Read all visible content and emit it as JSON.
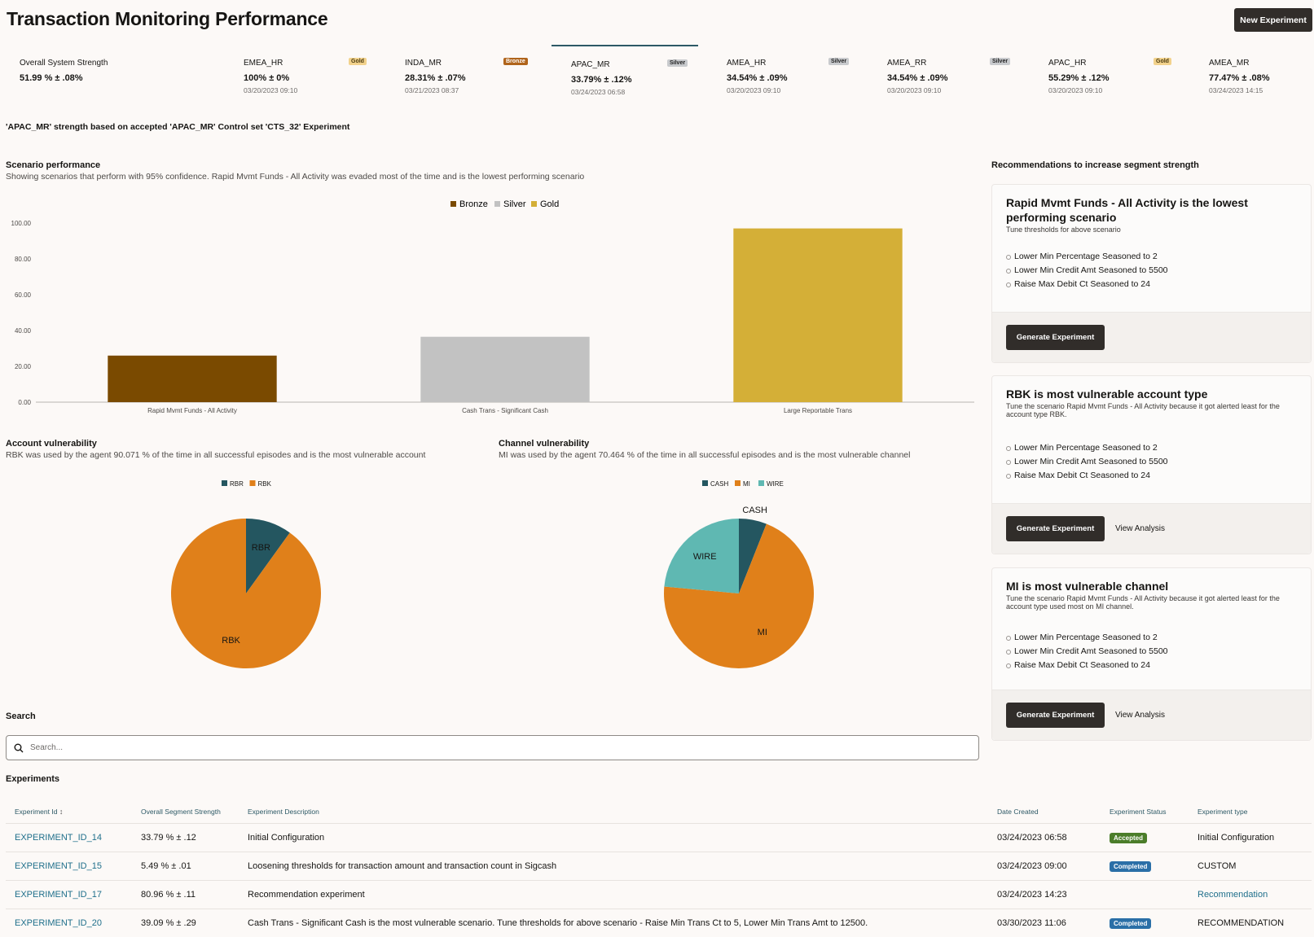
{
  "page": {
    "title": "Transaction Monitoring Performance",
    "new_experiment": "New Experiment"
  },
  "tabs": [
    {
      "name": "Overall System Strength",
      "value": "51.99 % ± .08%",
      "date": "",
      "badge": ""
    },
    {
      "name": "EMEA_HR",
      "value": "100% ± 0%",
      "date": "03/20/2023 09:10",
      "badge": "Gold"
    },
    {
      "name": "INDA_MR",
      "value": "28.31% ± .07%",
      "date": "03/21/2023 08:37",
      "badge": "Bronze"
    },
    {
      "name": "APAC_MR",
      "value": "33.79% ± .12%",
      "date": "03/24/2023 06:58",
      "badge": "Silver"
    },
    {
      "name": "AMEA_HR",
      "value": "34.54% ± .09%",
      "date": "03/20/2023 09:10",
      "badge": "Silver"
    },
    {
      "name": "AMEA_RR",
      "value": "34.54% ± .09%",
      "date": "03/20/2023 09:10",
      "badge": "Silver"
    },
    {
      "name": "APAC_HR",
      "value": "55.29% ± .12%",
      "date": "03/20/2023 09:10",
      "badge": "Gold"
    },
    {
      "name": "AMEA_MR",
      "value": "77.47% ± .08%",
      "date": "03/24/2023 14:15",
      "badge": ""
    }
  ],
  "selected_tab": "APAC_MR",
  "context_line": "'APAC_MR' strength based on accepted 'APAC_MR' Control set 'CTS_32' Experiment",
  "scenario": {
    "title": "Scenario performance",
    "subtitle": "Showing scenarios that perform with 95% confidence. Rapid Mvmt Funds - All Activity was evaded most of the time and is the lowest performing scenario"
  },
  "chart_data": [
    {
      "type": "bar",
      "categories": [
        "Rapid Mvmt Funds - All Activity",
        "Cash Trans - Significant Cash",
        "Large Reportable Trans"
      ],
      "series": [
        {
          "name": "Bronze",
          "values": [
            26,
            null,
            null
          ],
          "color": "#7a4a00"
        },
        {
          "name": "Silver",
          "values": [
            null,
            36.5,
            null
          ],
          "color": "#c2c2c2"
        },
        {
          "name": "Gold",
          "values": [
            null,
            null,
            97
          ],
          "color": "#d4af37"
        }
      ],
      "yticks": [
        "0.00",
        "20.00",
        "40.00",
        "60.00",
        "80.00",
        "100.00"
      ],
      "ylim": [
        0,
        100
      ],
      "legend": "top-center"
    },
    {
      "type": "pie",
      "title": "Account vulnerability",
      "legend": [
        {
          "name": "RBR",
          "color": "#245660"
        },
        {
          "name": "RBK",
          "color": "#e0801a"
        }
      ],
      "slices": [
        {
          "label": "RBR",
          "value": 9.929,
          "color": "#245660"
        },
        {
          "label": "RBK",
          "value": 90.071,
          "color": "#e0801a"
        }
      ]
    },
    {
      "type": "pie",
      "title": "Channel vulnerability",
      "legend": [
        {
          "name": "CASH",
          "color": "#245660"
        },
        {
          "name": "MI",
          "color": "#e0801a"
        },
        {
          "name": "WIRE",
          "color": "#5fb8b2"
        }
      ],
      "slices": [
        {
          "label": "CASH",
          "value": 6,
          "color": "#245660"
        },
        {
          "label": "MI",
          "value": 70.464,
          "color": "#e0801a"
        },
        {
          "label": "WIRE",
          "value": 23.536,
          "color": "#5fb8b2"
        }
      ]
    }
  ],
  "account": {
    "title": "Account vulnerability",
    "subtitle": "RBK was used by the agent 90.071 % of the time in all successful episodes and is the most vulnerable account"
  },
  "channel": {
    "title": "Channel vulnerability",
    "subtitle": "MI was used by the agent 70.464 % of the time in all successful episodes and is the most vulnerable channel"
  },
  "recommendations": {
    "title": "Recommendations to increase segment strength",
    "cards": [
      {
        "title": "Rapid Mvmt Funds - All Activity is the lowest performing scenario",
        "subtitle": "Tune thresholds for above scenario",
        "items": [
          "Lower Min Percentage Seasoned to 2",
          "Lower Min Credit Amt Seasoned to 5500",
          "Raise Max Debit Ct Seasoned to 24"
        ],
        "button": "Generate Experiment",
        "link": ""
      },
      {
        "title": "RBK is most vulnerable account type",
        "subtitle": "Tune the scenario Rapid Mvmt Funds - All Activity because it got alerted least for the account type RBK.",
        "items": [
          "Lower Min Percentage Seasoned to 2",
          "Lower Min Credit Amt Seasoned to 5500",
          "Raise Max Debit Ct Seasoned to 24"
        ],
        "button": "Generate Experiment",
        "link": "View Analysis"
      },
      {
        "title": "MI is most vulnerable channel",
        "subtitle": "Tune the scenario Rapid Mvmt Funds - All Activity because it got alerted least for the account type used most on MI channel.",
        "items": [
          "Lower Min Percentage Seasoned to 2",
          "Lower Min Credit Amt Seasoned to 5500",
          "Raise Max Debit Ct Seasoned to 24"
        ],
        "button": "Generate Experiment",
        "link": "View Analysis"
      }
    ]
  },
  "search": {
    "label": "Search",
    "placeholder": "Search..."
  },
  "experiments": {
    "title": "Experiments",
    "columns": [
      "Experiment Id",
      "Overall Segment Strength",
      "Experiment Description",
      "Date Created",
      "Experiment Status",
      "Experiment type"
    ],
    "rows": [
      {
        "id": "EXPERIMENT_ID_14",
        "strength": "33.79 % ± .12",
        "description": "Initial Configuration",
        "date": "03/24/2023 06:58",
        "status": "Accepted",
        "type": "Initial Configuration"
      },
      {
        "id": "EXPERIMENT_ID_15",
        "strength": "5.49 % ± .01",
        "description": "Loosening thresholds for transaction amount and transaction count in Sigcash",
        "date": "03/24/2023 09:00",
        "status": "Completed",
        "type": "CUSTOM"
      },
      {
        "id": "EXPERIMENT_ID_17",
        "strength": "80.96 % ± .11",
        "description": "Recommendation experiment",
        "date": "03/24/2023 14:23",
        "status": "",
        "type": "Recommendation"
      },
      {
        "id": "EXPERIMENT_ID_20",
        "strength": "39.09 % ± .29",
        "description": "Cash Trans - Significant Cash is the most vulnerable scenario. Tune thresholds for above scenario - Raise Min Trans Ct to 5, Lower Min Trans Amt to 12500.",
        "date": "03/30/2023 11:06",
        "status": "Completed",
        "type": "RECOMMENDATION"
      }
    ]
  }
}
